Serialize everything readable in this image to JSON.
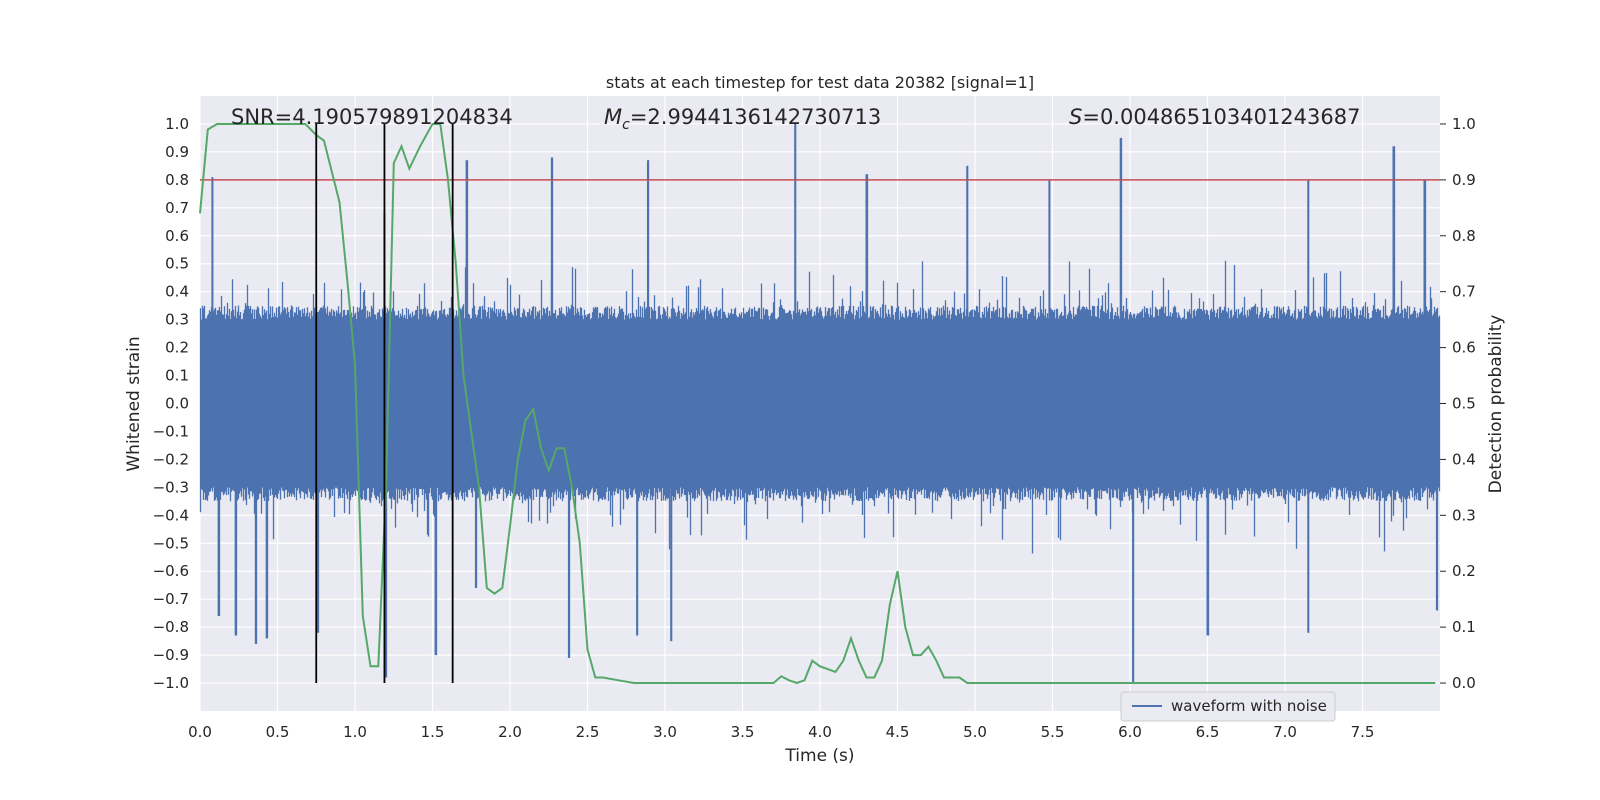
{
  "chart_data": {
    "type": "line",
    "title": "stats at each timestep for test data 20382 [signal=1]",
    "xlabel": "Time (s)",
    "ylabel": "Whitened strain",
    "ylabel_right": "Detection probability",
    "xlim": [
      0.0,
      8.0
    ],
    "ylim": [
      -1.1,
      1.1
    ],
    "ylim_right": [
      -0.05,
      1.05
    ],
    "x_ticks": [
      "0.0",
      "0.5",
      "1.0",
      "1.5",
      "2.0",
      "2.5",
      "3.0",
      "3.5",
      "4.0",
      "4.5",
      "5.0",
      "5.5",
      "6.0",
      "6.5",
      "7.0",
      "7.5"
    ],
    "x_tick_values": [
      0.0,
      0.5,
      1.0,
      1.5,
      2.0,
      2.5,
      3.0,
      3.5,
      4.0,
      4.5,
      5.0,
      5.5,
      6.0,
      6.5,
      7.0,
      7.5
    ],
    "y_ticks": [
      "1.0",
      "0.9",
      "0.8",
      "0.7",
      "0.6",
      "0.5",
      "0.4",
      "0.3",
      "0.2",
      "0.1",
      "0.0",
      "−0.1",
      "−0.2",
      "−0.3",
      "−0.4",
      "−0.5",
      "−0.6",
      "−0.7",
      "−0.8",
      "−0.9",
      "−1.0"
    ],
    "y_tick_values": [
      1.0,
      0.9,
      0.8,
      0.7,
      0.6,
      0.5,
      0.4,
      0.3,
      0.2,
      0.1,
      0.0,
      -0.1,
      -0.2,
      -0.3,
      -0.4,
      -0.5,
      -0.6,
      -0.7,
      -0.8,
      -0.9,
      -1.0
    ],
    "y_right_ticks": [
      "1.0",
      "0.9",
      "0.8",
      "0.7",
      "0.6",
      "0.5",
      "0.4",
      "0.3",
      "0.2",
      "0.1",
      "0.0"
    ],
    "y_right_tick_values": [
      1.0,
      0.9,
      0.8,
      0.7,
      0.6,
      0.5,
      0.4,
      0.3,
      0.2,
      0.1,
      0.0
    ],
    "annotations": {
      "snr": "SNR=4.190579891204834",
      "mc_prefix": "M",
      "mc_sub": "c",
      "mc_value": "=2.9944136142730713",
      "s_prefix": "S",
      "s_value": "=0.004865103401243687"
    },
    "legend": {
      "label": "waveform with noise",
      "placement": "bottom-right"
    },
    "threshold": {
      "value_right_axis": 0.9,
      "color": "#c44e52"
    },
    "vertical_lines_x": [
      0.75,
      1.19,
      1.63
    ],
    "waveform": {
      "name": "waveform with noise",
      "color": "#4c72b0",
      "typical_amplitude": 0.45,
      "spikes": [
        {
          "x": 0.08,
          "y": 0.81
        },
        {
          "x": 0.12,
          "y": -0.76
        },
        {
          "x": 0.23,
          "y": -0.83
        },
        {
          "x": 0.36,
          "y": -0.86
        },
        {
          "x": 0.43,
          "y": -0.84
        },
        {
          "x": 0.76,
          "y": -0.82
        },
        {
          "x": 1.19,
          "y": 0.68
        },
        {
          "x": 1.2,
          "y": -0.98
        },
        {
          "x": 1.52,
          "y": -0.9
        },
        {
          "x": 1.72,
          "y": 0.87
        },
        {
          "x": 2.27,
          "y": 0.88
        },
        {
          "x": 2.38,
          "y": -0.91
        },
        {
          "x": 2.82,
          "y": -0.83
        },
        {
          "x": 2.89,
          "y": 0.87
        },
        {
          "x": 3.04,
          "y": -0.85
        },
        {
          "x": 3.84,
          "y": 1.0
        },
        {
          "x": 4.95,
          "y": 0.85
        },
        {
          "x": 5.48,
          "y": 0.8
        },
        {
          "x": 5.94,
          "y": 0.95
        },
        {
          "x": 6.02,
          "y": -1.0
        },
        {
          "x": 6.5,
          "y": -0.83
        },
        {
          "x": 7.15,
          "y": 0.8
        },
        {
          "x": 7.15,
          "y": -0.82
        },
        {
          "x": 7.7,
          "y": 0.92
        },
        {
          "x": 7.9,
          "y": 0.8
        },
        {
          "x": 7.98,
          "y": -0.74
        },
        {
          "x": 1.78,
          "y": -0.66
        },
        {
          "x": 4.3,
          "y": 0.82
        }
      ]
    },
    "detection_probability": {
      "name": "detection probability",
      "color": "#55a868",
      "x": [
        0.0,
        0.05,
        0.11,
        0.4,
        0.68,
        0.75,
        0.8,
        0.9,
        0.95,
        1.0,
        1.05,
        1.1,
        1.15,
        1.2,
        1.25,
        1.3,
        1.35,
        1.42,
        1.5,
        1.55,
        1.6,
        1.65,
        1.7,
        1.8,
        1.85,
        1.9,
        1.95,
        2.0,
        2.05,
        2.1,
        2.15,
        2.2,
        2.25,
        2.3,
        2.35,
        2.4,
        2.45,
        2.5,
        2.55,
        2.6,
        2.7,
        2.8,
        2.9,
        3.0,
        3.2,
        3.5,
        3.6,
        3.7,
        3.75,
        3.8,
        3.85,
        3.9,
        3.95,
        4.0,
        4.1,
        4.15,
        4.2,
        4.25,
        4.3,
        4.35,
        4.4,
        4.45,
        4.5,
        4.55,
        4.6,
        4.65,
        4.7,
        4.75,
        4.8,
        4.85,
        4.9,
        4.95,
        5.0,
        5.1,
        5.2,
        5.3,
        5.5,
        5.7,
        5.9,
        6.0,
        6.2,
        6.4,
        6.6,
        6.8,
        7.0,
        7.2,
        7.4,
        7.6,
        7.8,
        7.9,
        7.97
      ],
      "values": [
        0.84,
        0.99,
        1.0,
        1.0,
        1.0,
        0.98,
        0.97,
        0.86,
        0.72,
        0.57,
        0.12,
        0.03,
        0.03,
        0.35,
        0.93,
        0.96,
        0.92,
        0.96,
        1.0,
        1.0,
        0.9,
        0.75,
        0.55,
        0.35,
        0.17,
        0.16,
        0.17,
        0.28,
        0.4,
        0.47,
        0.49,
        0.42,
        0.38,
        0.42,
        0.42,
        0.35,
        0.25,
        0.06,
        0.01,
        0.01,
        0.005,
        0.0,
        0.0,
        0.0,
        0.0,
        0.0,
        0.0,
        0.0,
        0.012,
        0.005,
        0.0,
        0.005,
        0.04,
        0.03,
        0.02,
        0.04,
        0.08,
        0.04,
        0.01,
        0.01,
        0.04,
        0.14,
        0.2,
        0.1,
        0.05,
        0.05,
        0.065,
        0.04,
        0.01,
        0.01,
        0.01,
        0.0,
        0.0,
        0.0,
        0.0,
        0.0,
        0.0,
        0.0,
        0.0,
        0.0,
        0.0,
        0.0,
        0.0,
        0.0,
        0.0,
        0.0,
        0.0,
        0.0,
        0.0,
        0.0,
        0.0
      ]
    }
  }
}
